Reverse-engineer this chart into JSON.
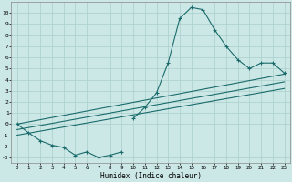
{
  "xlabel": "Humidex (Indice chaleur)",
  "xlim": [
    -0.5,
    23.5
  ],
  "ylim": [
    -3.5,
    11.0
  ],
  "yticks": [
    -3,
    -2,
    -1,
    0,
    1,
    2,
    3,
    4,
    5,
    6,
    7,
    8,
    9,
    10
  ],
  "xticks": [
    0,
    1,
    2,
    3,
    4,
    5,
    6,
    7,
    8,
    9,
    10,
    11,
    12,
    13,
    14,
    15,
    16,
    17,
    18,
    19,
    20,
    21,
    22,
    23
  ],
  "bg_color": "#cce8e6",
  "grid_color": "#aacfcc",
  "line_color": "#1a6b6b",
  "peaked_x": [
    10,
    11,
    12,
    13,
    14,
    15,
    16,
    17,
    18,
    19,
    20,
    21,
    22,
    23
  ],
  "peaked_y": [
    0.5,
    1.5,
    2.8,
    5.5,
    9.5,
    10.5,
    10.3,
    8.5,
    7.0,
    5.8,
    5.0,
    5.5,
    5.5,
    4.6
  ],
  "wavy_x": [
    0,
    1,
    2,
    3,
    4,
    5,
    6,
    7,
    8,
    9
  ],
  "wavy_y": [
    0.0,
    -0.8,
    -1.5,
    -1.9,
    -2.1,
    -2.8,
    -2.5,
    -3.0,
    -2.8,
    -2.5
  ],
  "line1_x": [
    0,
    23
  ],
  "line1_y": [
    0.0,
    4.5
  ],
  "line2_x": [
    0,
    23
  ],
  "line2_y": [
    -0.5,
    3.8
  ],
  "line3_x": [
    0,
    23
  ],
  "line3_y": [
    -1.0,
    3.2
  ]
}
